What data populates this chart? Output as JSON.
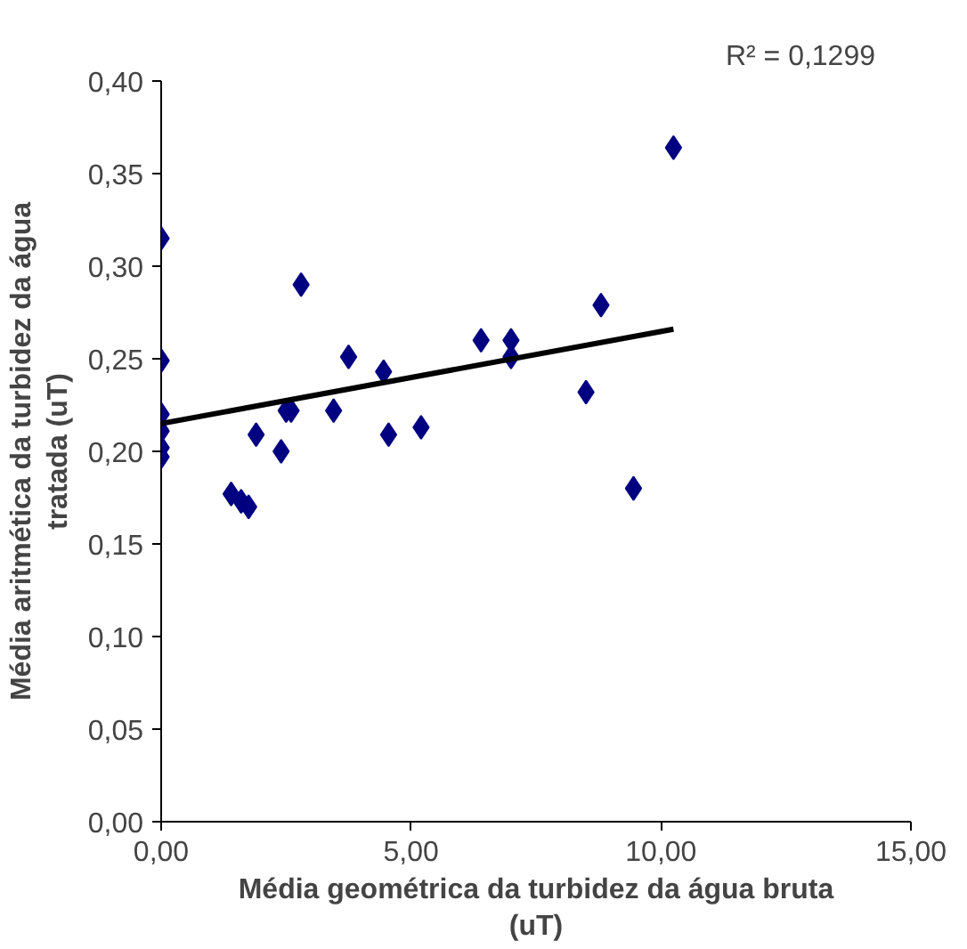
{
  "chart_data": {
    "type": "scatter",
    "xlabel": "Média geométrica da turbidez da água bruta (uT)",
    "ylabel": "Média aritmética da turbidez da água tratada (uT)",
    "annotations": [
      "R² = 0,1299"
    ],
    "xlim": [
      0,
      15
    ],
    "ylim": [
      0,
      0.4
    ],
    "xticks": [
      {
        "value": 0,
        "label": "0,00"
      },
      {
        "value": 5,
        "label": "5,00"
      },
      {
        "value": 10,
        "label": "10,00"
      },
      {
        "value": 15,
        "label": "15,00"
      }
    ],
    "yticks": [
      {
        "value": 0,
        "label": "0,00"
      },
      {
        "value": 0.05,
        "label": "0,05"
      },
      {
        "value": 0.1,
        "label": "0,10"
      },
      {
        "value": 0.15,
        "label": "0,15"
      },
      {
        "value": 0.2,
        "label": "0,20"
      },
      {
        "value": 0.25,
        "label": "0,25"
      },
      {
        "value": 0.3,
        "label": "0,30"
      },
      {
        "value": 0.35,
        "label": "0,35"
      },
      {
        "value": 0.4,
        "label": "0,40"
      }
    ],
    "grid": false,
    "marker": "diamond",
    "series": [
      {
        "color": "#000080",
        "x": [
          0,
          0,
          0,
          0,
          0,
          0,
          2.8,
          6.4,
          7.0,
          7.0,
          3.75,
          4.45,
          2.6,
          2.5,
          3.45,
          1.9,
          2.4,
          4.55,
          5.2,
          1.4,
          1.6,
          1.75,
          10.25,
          8.8,
          8.5,
          9.45
        ],
        "values": [
          0.315,
          0.249,
          0.22,
          0.211,
          0.202,
          0.197,
          0.29,
          0.26,
          0.26,
          0.251,
          0.251,
          0.243,
          0.222,
          0.222,
          0.222,
          0.209,
          0.2,
          0.209,
          0.213,
          0.177,
          0.173,
          0.17,
          0.364,
          0.279,
          0.232,
          0.18
        ]
      },
      {
        "type": "line",
        "marker": "none",
        "color": "#000000",
        "x": [
          0,
          10.25
        ],
        "values": [
          0.215,
          0.266
        ]
      }
    ]
  }
}
